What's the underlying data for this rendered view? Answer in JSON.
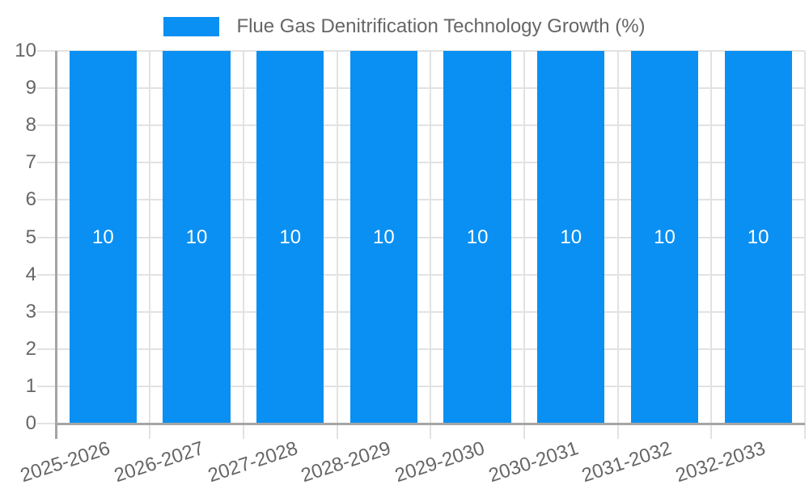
{
  "chart_data": {
    "type": "bar",
    "title": "Flue Gas Denitrification Technology Growth (%)",
    "categories": [
      "2025-2026",
      "2026-2027",
      "2027-2028",
      "2028-2029",
      "2029-2030",
      "2030-2031",
      "2031-2032",
      "2032-2033"
    ],
    "values": [
      10,
      10,
      10,
      10,
      10,
      10,
      10,
      10
    ],
    "bar_value_labels": [
      "10",
      "10",
      "10",
      "10",
      "10",
      "10",
      "10",
      "10"
    ],
    "xlabel": "",
    "ylabel": "",
    "ylim": [
      0,
      10
    ],
    "ytick_step": 1,
    "ytick_labels": [
      "0",
      "1",
      "2",
      "3",
      "4",
      "5",
      "6",
      "7",
      "8",
      "9",
      "10"
    ],
    "grid": "on",
    "legend_position": "top",
    "x_label_rotation_deg": -18,
    "colors": {
      "bar": "#0a90f2",
      "gridline": "#e2e2e2",
      "axis_line": "#a5a5a5",
      "tick_text": "#666666",
      "legend_text": "#666666",
      "bar_value_text": "#ffffff",
      "background": "#ffffff"
    }
  }
}
